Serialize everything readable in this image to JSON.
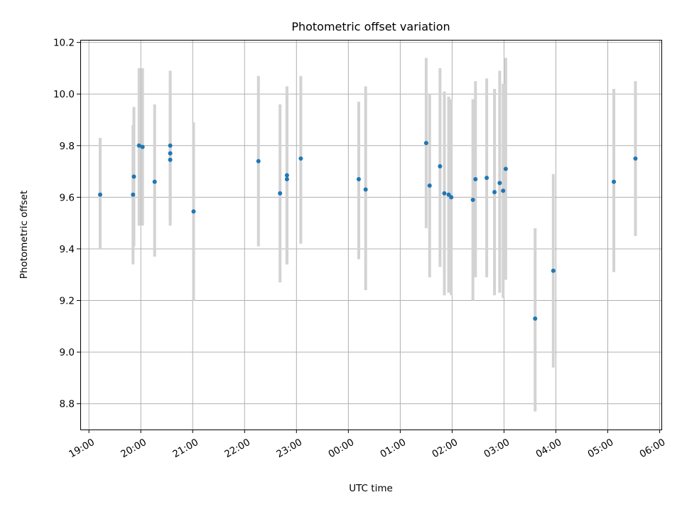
{
  "chart_data": {
    "type": "scatter",
    "title": "Photometric offset variation",
    "xlabel": "UTC time",
    "ylabel": "Photometric offset",
    "xlim": [
      "18:50",
      "30:02"
    ],
    "ylim": [
      8.7,
      10.21
    ],
    "grid": true,
    "x_tick_labels": [
      "19:00",
      "20:00",
      "21:00",
      "22:00",
      "23:00",
      "00:00",
      "01:00",
      "02:00",
      "03:00",
      "04:00",
      "05:00",
      "06:00"
    ],
    "x_ticks": [
      "19:00",
      "20:00",
      "21:00",
      "22:00",
      "23:00",
      "24:00",
      "25:00",
      "26:00",
      "27:00",
      "28:00",
      "29:00",
      "30:00"
    ],
    "y_tick_labels": [
      "8.8",
      "9.0",
      "9.2",
      "9.4",
      "9.6",
      "9.8",
      "10.0",
      "10.2"
    ],
    "y_ticks": [
      8.8,
      9.0,
      9.2,
      9.4,
      9.6,
      9.8,
      10.0,
      10.2
    ],
    "colors": {
      "point": "#1f77b4",
      "errorbar": "#d3d3d3",
      "grid": "#b0b0b0"
    },
    "series": [
      {
        "points": [
          {
            "x": "19:13",
            "y": 9.61,
            "low": 9.4,
            "high": 9.83
          },
          {
            "x": "19:51",
            "y": 9.61,
            "low": 9.34,
            "high": 9.88
          },
          {
            "x": "19:52",
            "y": 9.68,
            "low": 9.41,
            "high": 9.95
          },
          {
            "x": "19:58",
            "y": 9.8,
            "low": 9.49,
            "high": 10.1
          },
          {
            "x": "20:02",
            "y": 9.795,
            "low": 9.49,
            "high": 10.1
          },
          {
            "x": "20:16",
            "y": 9.66,
            "low": 9.37,
            "high": 9.96
          },
          {
            "x": "20:34",
            "y": 9.745,
            "low": 9.51,
            "high": 9.98
          },
          {
            "x": "20:34",
            "y": 9.77,
            "low": 9.49,
            "high": 10.05
          },
          {
            "x": "20:34",
            "y": 9.8,
            "low": 9.51,
            "high": 10.09
          },
          {
            "x": "21:01",
            "y": 9.545,
            "low": 9.2,
            "high": 9.89
          },
          {
            "x": "22:16",
            "y": 9.74,
            "low": 9.41,
            "high": 10.07
          },
          {
            "x": "22:41",
            "y": 9.615,
            "low": 9.27,
            "high": 9.96
          },
          {
            "x": "22:49",
            "y": 9.67,
            "low": 9.34,
            "high": 10.0
          },
          {
            "x": "22:49",
            "y": 9.685,
            "low": 9.34,
            "high": 10.03
          },
          {
            "x": "23:05",
            "y": 9.75,
            "low": 9.42,
            "high": 10.07
          },
          {
            "x": "00:12",
            "y": 9.67,
            "low": 9.36,
            "high": 9.97
          },
          {
            "x": "00:20",
            "y": 9.63,
            "low": 9.24,
            "high": 10.03
          },
          {
            "x": "01:30",
            "y": 9.81,
            "low": 9.48,
            "high": 10.14
          },
          {
            "x": "01:34",
            "y": 9.645,
            "low": 9.29,
            "high": 10.0
          },
          {
            "x": "01:46",
            "y": 9.72,
            "low": 9.33,
            "high": 10.1
          },
          {
            "x": "01:51",
            "y": 9.615,
            "low": 9.22,
            "high": 10.01
          },
          {
            "x": "01:56",
            "y": 9.61,
            "low": 9.23,
            "high": 9.99
          },
          {
            "x": "01:59",
            "y": 9.6,
            "low": 9.22,
            "high": 9.98
          },
          {
            "x": "02:24",
            "y": 9.59,
            "low": 9.2,
            "high": 9.98
          },
          {
            "x": "02:27",
            "y": 9.67,
            "low": 9.29,
            "high": 10.05
          },
          {
            "x": "02:40",
            "y": 9.675,
            "low": 9.29,
            "high": 10.06
          },
          {
            "x": "02:49",
            "y": 9.62,
            "low": 9.22,
            "high": 10.02
          },
          {
            "x": "02:55",
            "y": 9.655,
            "low": 9.23,
            "high": 10.09
          },
          {
            "x": "02:59",
            "y": 9.625,
            "low": 9.21,
            "high": 10.04
          },
          {
            "x": "03:02",
            "y": 9.71,
            "low": 9.28,
            "high": 10.14
          },
          {
            "x": "03:36",
            "y": 9.13,
            "low": 8.77,
            "high": 9.48
          },
          {
            "x": "03:57",
            "y": 9.315,
            "low": 8.94,
            "high": 9.69
          },
          {
            "x": "05:07",
            "y": 9.66,
            "low": 9.31,
            "high": 10.02
          },
          {
            "x": "05:32",
            "y": 9.75,
            "low": 9.45,
            "high": 10.05
          }
        ]
      }
    ]
  }
}
